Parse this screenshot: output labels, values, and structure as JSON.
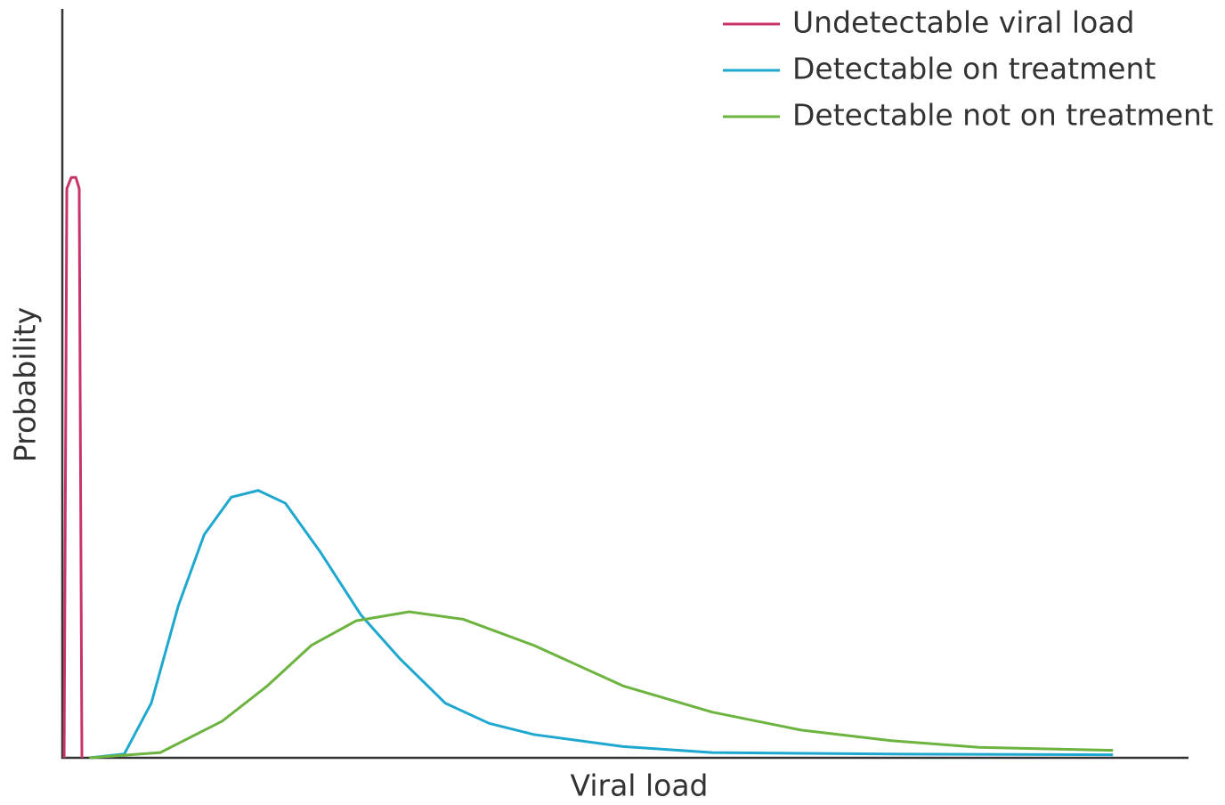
{
  "chart_data": {
    "type": "line",
    "xlabel": "Viral load",
    "ylabel": "Probability",
    "xlim": [
      0,
      100
    ],
    "ylim": [
      0,
      100
    ],
    "legend": "top-right",
    "series": [
      {
        "name": "Undetectable viral load",
        "color": "#c8336a",
        "x": [
          0.16,
          0.4,
          0.8,
          1.2,
          1.5,
          1.74
        ],
        "values": [
          0,
          76,
          77.5,
          77.5,
          76,
          0
        ]
      },
      {
        "name": "Detectable on treatment",
        "color": "#1ea8d0",
        "x": [
          2.4,
          5.5,
          7.9,
          10.3,
          12.6,
          15,
          17.4,
          19.8,
          22.9,
          26.5,
          30,
          34,
          37.9,
          41.9,
          49.8,
          57.7,
          73.5,
          93.3
        ],
        "values": [
          0,
          0.5,
          7.3,
          20.3,
          29.8,
          34.8,
          35.7,
          34,
          27.5,
          19.1,
          13.2,
          7.3,
          4.6,
          3.1,
          1.5,
          0.7,
          0.5,
          0.4
        ]
      },
      {
        "name": "Detectable not on treatment",
        "color": "#6cb33f",
        "x": [
          2.4,
          8.7,
          14.2,
          18.2,
          22.1,
          26.1,
          30.8,
          35.6,
          41.9,
          49.8,
          57.7,
          65.6,
          73.5,
          81.4,
          93.3
        ],
        "values": [
          0,
          0.7,
          4.9,
          9.6,
          15,
          18.3,
          19.5,
          18.5,
          15,
          9.6,
          6.1,
          3.7,
          2.3,
          1.4,
          1.0
        ]
      }
    ]
  }
}
